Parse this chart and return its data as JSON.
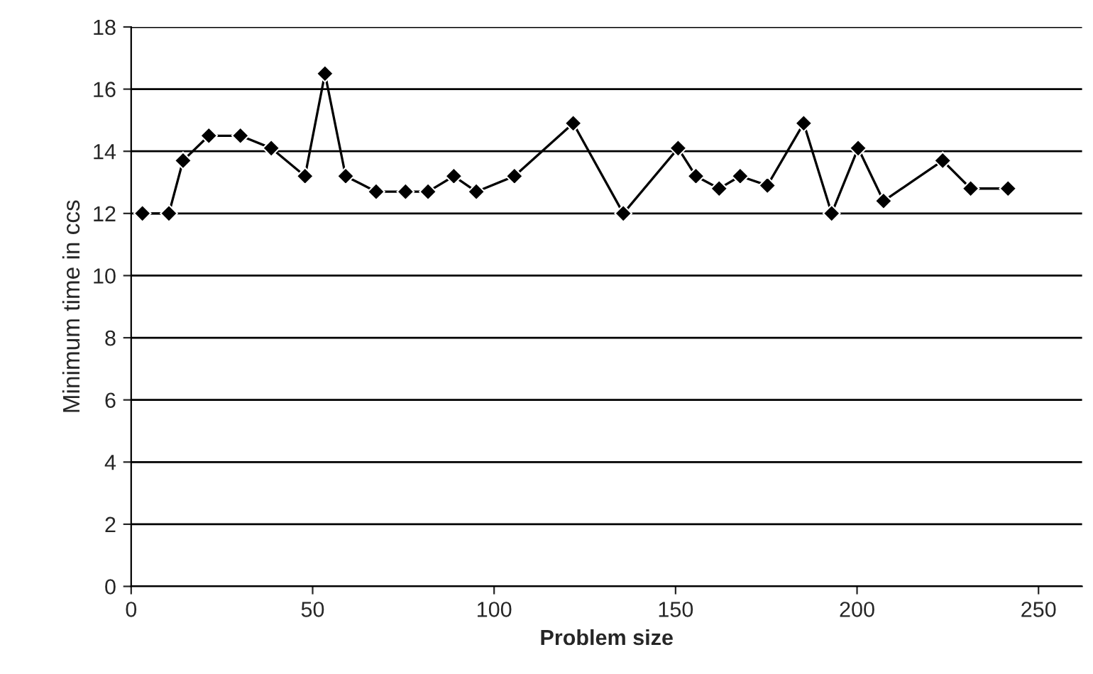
{
  "chart_data": {
    "type": "line",
    "xlabel": "Problem size",
    "ylabel": "Minimum time in ccs",
    "x": [
      3.1,
      10.4,
      14.3,
      21.4,
      30.1,
      38.6,
      47.9,
      53.4,
      59.1,
      67.5,
      75.6,
      81.8,
      88.9,
      95.1,
      105.6,
      121.8,
      135.6,
      150.7,
      155.6,
      162.0,
      167.8,
      175.3,
      185.3,
      193.0,
      200.3,
      207.3,
      223.6,
      231.3,
      241.6
    ],
    "series": [
      {
        "color": "#000000",
        "values": [
          12.0,
          12.0,
          13.7,
          14.5,
          14.5,
          14.1,
          13.2,
          16.5,
          13.2,
          12.7,
          12.7,
          12.7,
          13.2,
          12.7,
          13.2,
          14.9,
          12.0,
          14.1,
          13.2,
          12.8,
          13.2,
          12.9,
          14.9,
          12.0,
          14.1,
          12.4,
          13.7,
          12.8,
          12.8
        ]
      }
    ],
    "xlim": [
      0,
      262
    ],
    "ylim": [
      0,
      18
    ],
    "xticks": [
      0,
      50,
      100,
      150,
      200,
      250
    ],
    "yticks": [
      0,
      2,
      4,
      6,
      8,
      10,
      12,
      14,
      16,
      18
    ],
    "grid": "y",
    "marker": "diamond",
    "line_style": "solid",
    "legend": false
  }
}
